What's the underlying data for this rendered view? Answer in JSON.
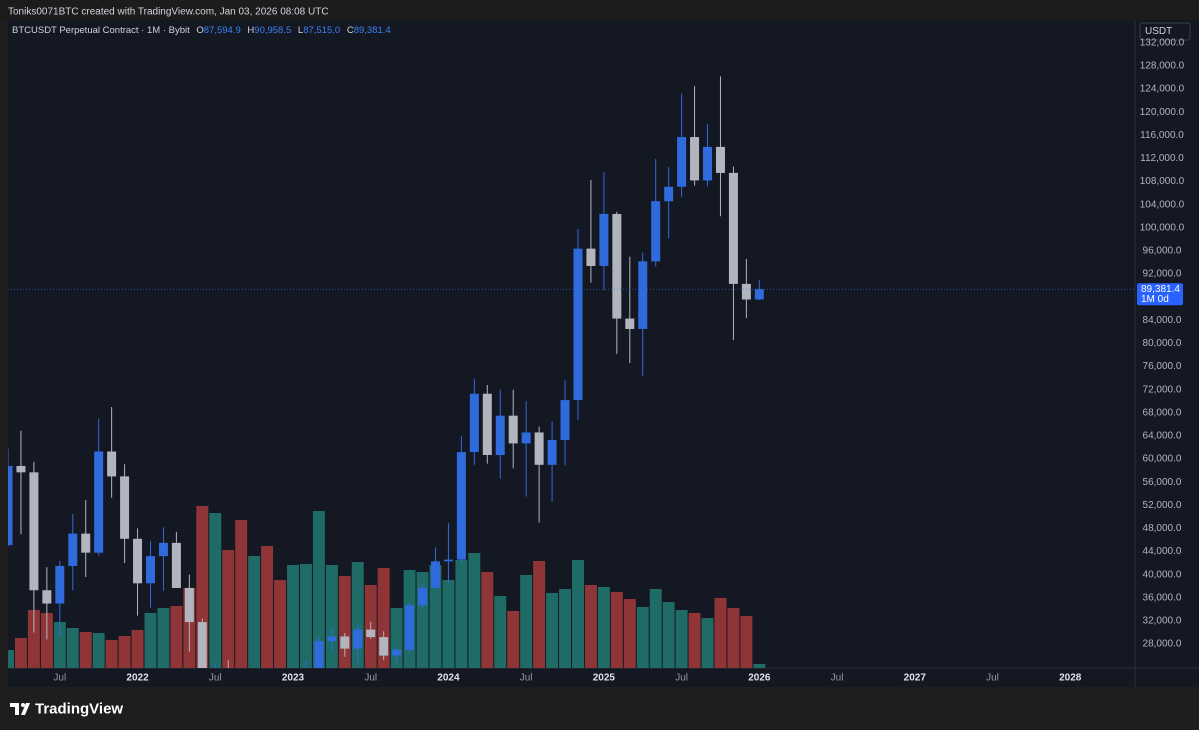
{
  "header": {
    "title": "Toniks0071BTC created with TradingView.com, Jan 03, 2026 08:08 UTC"
  },
  "footer": {
    "brand": "TradingView"
  },
  "chart_data": {
    "type": "candlestick",
    "legend": {
      "symbol": "BTCUSDT Perpetual Contract · 1M · Bybit",
      "keys": [
        "O",
        "H",
        "L",
        "C"
      ],
      "values": [
        "87,594.9",
        "90,958.5",
        "87,515.0",
        "89,381.4"
      ]
    },
    "currency": "USDT",
    "last_price_label": "89,381.4",
    "countdown": "1M 0d",
    "up_color": "#2f6bdc",
    "down_color": "#b2b5be",
    "volume_up_color": "#1f6b66",
    "volume_down_color": "#8f3537",
    "x": [
      "2021-03",
      "2021-04",
      "2021-05",
      "2021-06",
      "2021-07",
      "2021-08",
      "2021-09",
      "2021-10",
      "2021-11",
      "2021-12",
      "2022-01",
      "2022-02",
      "2022-03",
      "2022-04",
      "2022-05",
      "2022-06",
      "2022-07",
      "2022-08",
      "2022-09",
      "2022-10",
      "2022-11",
      "2022-12",
      "2023-01",
      "2023-02",
      "2023-03",
      "2023-04",
      "2023-05",
      "2023-06",
      "2023-07",
      "2023-08",
      "2023-09",
      "2023-10",
      "2023-11",
      "2023-12",
      "2024-01",
      "2024-02",
      "2024-03",
      "2024-04",
      "2024-05",
      "2024-06",
      "2024-07",
      "2024-08",
      "2024-09",
      "2024-10",
      "2024-11",
      "2024-12",
      "2025-01",
      "2025-02",
      "2025-03",
      "2025-04",
      "2025-05",
      "2025-06",
      "2025-07",
      "2025-08",
      "2025-09",
      "2025-10",
      "2025-11",
      "2025-12",
      "2026-01"
    ],
    "open": [
      45100,
      58800,
      57700,
      37300,
      35000,
      41500,
      47100,
      43800,
      61300,
      57000,
      46200,
      38500,
      43200,
      45500,
      37700,
      31800,
      19900,
      23300,
      20000,
      19400,
      20500,
      17200,
      16500,
      23100,
      23100,
      28500,
      29300,
      27200,
      30500,
      29200,
      26000,
      27000,
      34700,
      37700,
      42300,
      42600,
      61200,
      71300,
      60700,
      67500,
      62700,
      64600,
      59000,
      63300,
      70200,
      96400,
      93400,
      102400,
      84300,
      82500,
      94200,
      104600,
      107100,
      115700,
      108200,
      114000,
      109500,
      90300,
      87594.9
    ],
    "high": [
      61800,
      64900,
      59500,
      41300,
      42400,
      50500,
      52900,
      67000,
      69000,
      59100,
      48000,
      45800,
      48200,
      47400,
      40000,
      32400,
      24700,
      25200,
      22800,
      21100,
      21500,
      18400,
      23900,
      25300,
      29200,
      31000,
      29900,
      31400,
      31800,
      30200,
      27500,
      35200,
      38400,
      44700,
      48900,
      64000,
      73800,
      72800,
      72000,
      72000,
      70000,
      65600,
      66500,
      73600,
      99800,
      108300,
      109600,
      102800,
      95000,
      95700,
      111900,
      110500,
      123200,
      124500,
      117900,
      126200,
      110600,
      94600,
      90958.5
    ],
    "low": [
      44900,
      47000,
      30000,
      28800,
      29300,
      37300,
      39600,
      43300,
      53300,
      42000,
      32900,
      34300,
      37200,
      37700,
      26700,
      17600,
      18800,
      19500,
      18200,
      18200,
      15500,
      16300,
      16500,
      21400,
      19500,
      26900,
      25800,
      24800,
      28900,
      25200,
      24900,
      26600,
      34100,
      37600,
      38600,
      41900,
      59000,
      59200,
      56600,
      58400,
      53500,
      49000,
      52600,
      58900,
      66800,
      90500,
      89200,
      78200,
      76600,
      74400,
      93300,
      98200,
      105300,
      107300,
      107200,
      102000,
      80600,
      84400,
      87515
    ],
    "close": [
      58800,
      57700,
      37300,
      35000,
      41500,
      47100,
      43800,
      61300,
      57000,
      46200,
      38500,
      43200,
      45500,
      37700,
      31800,
      19900,
      23300,
      20000,
      19400,
      20500,
      17200,
      16500,
      23100,
      23100,
      28500,
      29300,
      27200,
      30500,
      29200,
      26000,
      27000,
      34700,
      37700,
      42300,
      42600,
      61200,
      71300,
      60700,
      67500,
      62700,
      64600,
      59000,
      63300,
      70200,
      96400,
      93400,
      102400,
      84300,
      82500,
      94200,
      104600,
      107100,
      115700,
      108200,
      114000,
      109500,
      90300,
      87594.9,
      89381.4
    ],
    "volume": [
      18,
      30,
      58,
      55,
      46,
      40,
      36,
      35,
      28,
      32,
      38,
      55,
      60,
      62,
      80,
      162,
      155,
      118,
      148,
      112,
      122,
      88,
      103,
      104,
      157,
      103,
      92,
      106,
      83,
      100,
      60,
      98,
      96,
      103,
      88,
      108,
      115,
      96,
      72,
      57,
      93,
      107,
      75,
      79,
      108,
      83,
      81,
      76,
      69,
      61,
      79,
      66,
      58,
      55,
      50,
      70,
      60,
      52,
      4
    ],
    "xlim": [
      "2021-03",
      "2028-06"
    ],
    "xticks": [
      {
        "value": "2021-07",
        "label": "Jul"
      },
      {
        "value": "2022-01",
        "label": "2022"
      },
      {
        "value": "2022-07",
        "label": "Jul"
      },
      {
        "value": "2023-01",
        "label": "2023"
      },
      {
        "value": "2023-07",
        "label": "Jul"
      },
      {
        "value": "2024-01",
        "label": "2024"
      },
      {
        "value": "2024-07",
        "label": "Jul"
      },
      {
        "value": "2025-01",
        "label": "2025"
      },
      {
        "value": "2025-07",
        "label": "Jul"
      },
      {
        "value": "2026-01",
        "label": "2026"
      },
      {
        "value": "2026-07",
        "label": "Jul"
      },
      {
        "value": "2027-01",
        "label": "2027"
      },
      {
        "value": "2027-07",
        "label": "Jul"
      },
      {
        "value": "2028-01",
        "label": "2028"
      }
    ],
    "ylim": [
      23850,
      135950
    ],
    "yticks": [
      {
        "value": 28000,
        "label": "28,000.0"
      },
      {
        "value": 32000,
        "label": "32,000.0"
      },
      {
        "value": 36000,
        "label": "36,000.0"
      },
      {
        "value": 40000,
        "label": "40,000.0"
      },
      {
        "value": 44000,
        "label": "44,000.0"
      },
      {
        "value": 48000,
        "label": "48,000.0"
      },
      {
        "value": 52000,
        "label": "52,000.0"
      },
      {
        "value": 56000,
        "label": "56,000.0"
      },
      {
        "value": 60000,
        "label": "60,000.0"
      },
      {
        "value": 64000,
        "label": "64,000.0"
      },
      {
        "value": 68000,
        "label": "68,000.0"
      },
      {
        "value": 72000,
        "label": "72,000.0"
      },
      {
        "value": 76000,
        "label": "76,000.0"
      },
      {
        "value": 80000,
        "label": "80,000.0"
      },
      {
        "value": 84000,
        "label": "84,000.0"
      },
      {
        "value": 88000,
        "label": "88,000.0"
      },
      {
        "value": 92000,
        "label": "92,000.0"
      },
      {
        "value": 96000,
        "label": "96,000.0"
      },
      {
        "value": 100000,
        "label": "100,000.0"
      },
      {
        "value": 104000,
        "label": "104,000.0"
      },
      {
        "value": 108000,
        "label": "108,000.0"
      },
      {
        "value": 112000,
        "label": "112,000.0"
      },
      {
        "value": 116000,
        "label": "116,000.0"
      },
      {
        "value": 120000,
        "label": "120,000.0"
      },
      {
        "value": 124000,
        "label": "124,000.0"
      },
      {
        "value": 128000,
        "label": "128,000.0"
      },
      {
        "value": 132000,
        "label": "132,000.0"
      }
    ]
  }
}
